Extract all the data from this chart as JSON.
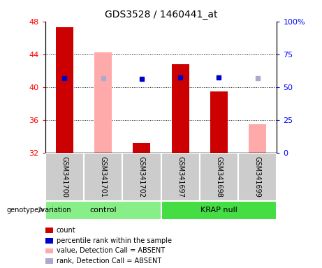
{
  "title": "GDS3528 / 1460441_at",
  "samples": [
    "GSM341700",
    "GSM341701",
    "GSM341702",
    "GSM341697",
    "GSM341698",
    "GSM341699"
  ],
  "ylim_left": [
    32,
    48
  ],
  "ylim_right": [
    0,
    100
  ],
  "yticks_left": [
    32,
    36,
    40,
    44,
    48
  ],
  "yticks_right": [
    0,
    25,
    50,
    75,
    100
  ],
  "red_bars": [
    47.3,
    null,
    33.2,
    42.8,
    39.5,
    null
  ],
  "pink_bars": [
    null,
    44.2,
    null,
    null,
    null,
    35.5
  ],
  "blue_dots": [
    41.1,
    null,
    41.0,
    41.2,
    41.2,
    null
  ],
  "light_blue_dots": [
    null,
    41.1,
    null,
    null,
    null,
    41.1
  ],
  "bar_baseline": 32,
  "bar_width": 0.45,
  "colors": {
    "red": "#cc0000",
    "pink": "#ffaaaa",
    "blue": "#0000cc",
    "light_blue": "#aaaacc",
    "group_control": "#88ee88",
    "group_krap": "#44dd44",
    "background_label": "#cccccc"
  },
  "legend_items": [
    {
      "label": "count",
      "color": "#cc0000"
    },
    {
      "label": "percentile rank within the sample",
      "color": "#0000cc"
    },
    {
      "label": "value, Detection Call = ABSENT",
      "color": "#ffaaaa"
    },
    {
      "label": "rank, Detection Call = ABSENT",
      "color": "#aaaacc"
    }
  ],
  "title_fontsize": 10,
  "tick_fontsize": 8,
  "sample_fontsize": 7,
  "group_fontsize": 8,
  "legend_fontsize": 7,
  "geno_fontsize": 7
}
